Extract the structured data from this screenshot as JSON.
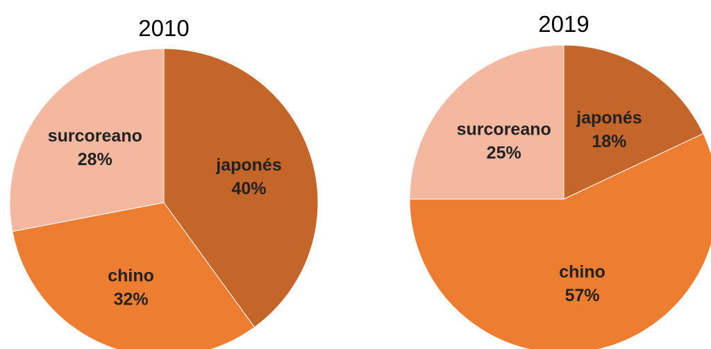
{
  "chart_data": [
    {
      "type": "pie",
      "title": "2010",
      "categories": [
        "japonés",
        "chino",
        "surcoreano"
      ],
      "values": [
        40,
        32,
        28
      ],
      "value_labels": [
        "40%",
        "32%",
        "28%"
      ],
      "colors": [
        "#c4652a",
        "#ed7d31",
        "#f4b8a0"
      ],
      "start_angle_deg": 0,
      "direction": "clockwise"
    },
    {
      "type": "pie",
      "title": "2019",
      "categories": [
        "japonés",
        "chino",
        "surcoreano"
      ],
      "values": [
        18,
        57,
        25
      ],
      "value_labels": [
        "18%",
        "57%",
        "25%"
      ],
      "colors": [
        "#c4652a",
        "#ed7d31",
        "#f4b8a0"
      ],
      "start_angle_deg": 0,
      "direction": "clockwise"
    }
  ]
}
